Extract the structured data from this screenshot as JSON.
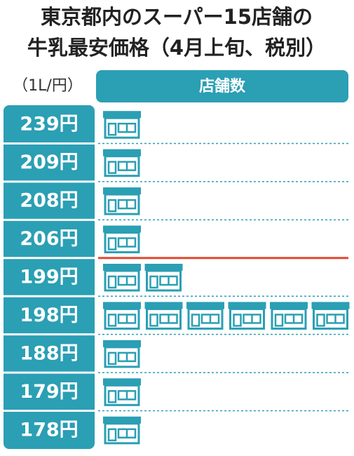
{
  "chart_data": {
    "type": "pictograph",
    "title": [
      "東京都内のスーパー15店舗の",
      "牛乳最安価格（4月上旬、税別）"
    ],
    "unit_label": "（1L/円）",
    "header": "店舗数",
    "categories": [
      "239円",
      "209円",
      "208円",
      "206円",
      "199円",
      "198円",
      "188円",
      "179円",
      "178円"
    ],
    "values": [
      1,
      1,
      1,
      1,
      2,
      6,
      1,
      1,
      1
    ],
    "color": "#2b9fb4"
  }
}
